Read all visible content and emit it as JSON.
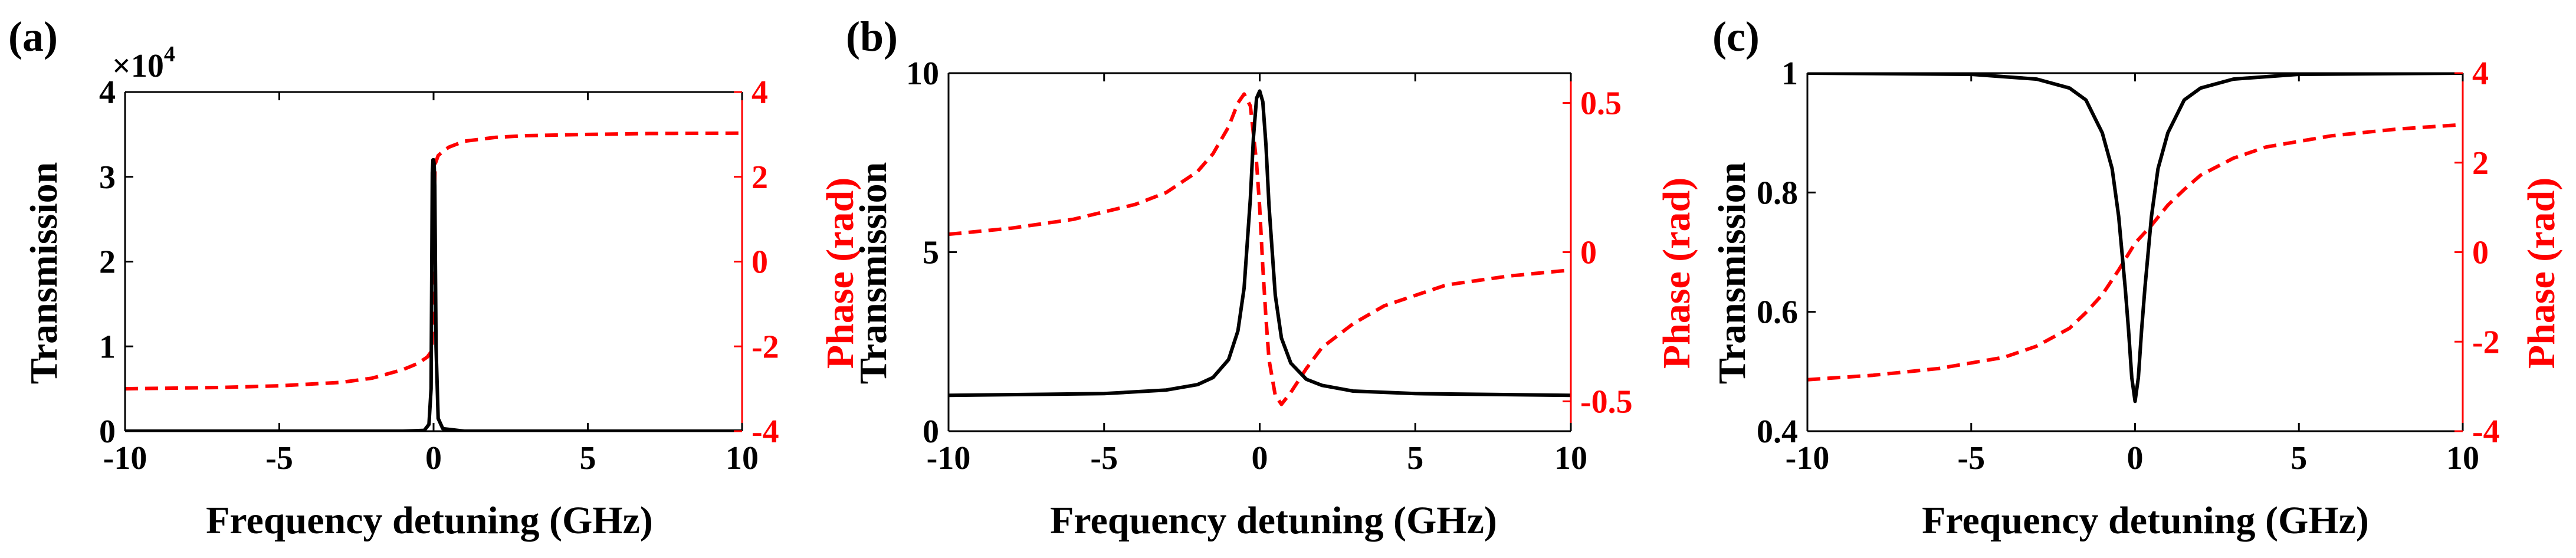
{
  "colors": {
    "transmission": "#000000",
    "phase": "#ff0000"
  },
  "chart_data": [
    {
      "type": "line",
      "panel_label": "(a)",
      "xlabel": "Frequency detuning (GHz)",
      "ylabel_left": "Transmission",
      "ylabel_right": "Phase (rad)",
      "exponent_label": "×10",
      "exponent_power": "4",
      "xlim": [
        -10,
        10
      ],
      "ylim_left": [
        0,
        4
      ],
      "ylim_right": [
        -4,
        4
      ],
      "xticks": [
        "-10",
        "-5",
        "0",
        "5",
        "10"
      ],
      "yticks_left": [
        "0",
        "1",
        "2",
        "3",
        "4"
      ],
      "yticks_right": [
        "-4",
        "-2",
        "0",
        "2",
        "4"
      ],
      "series": [
        {
          "name": "Transmission (×10^4)",
          "axis": "left",
          "style": "solid",
          "x": [
            -10,
            -1,
            -0.3,
            -0.15,
            -0.08,
            -0.04,
            -0.02,
            0,
            0.02,
            0.04,
            0.08,
            0.15,
            0.3,
            1,
            10
          ],
          "values": [
            0,
            0,
            0.01,
            0.08,
            0.5,
            3.05,
            3.2,
            3.2,
            3.15,
            2.9,
            1.0,
            0.15,
            0.03,
            0,
            0
          ]
        },
        {
          "name": "Phase",
          "axis": "right",
          "style": "dashed",
          "x": [
            -10,
            -7,
            -5,
            -3,
            -2,
            -1,
            -0.5,
            -0.2,
            -0.05,
            0,
            0.05,
            0.15,
            0.3,
            0.5,
            1,
            2,
            3,
            5,
            7,
            10
          ],
          "values": [
            -3.0,
            -2.97,
            -2.93,
            -2.85,
            -2.75,
            -2.55,
            -2.4,
            -2.25,
            -2.1,
            0.5,
            2.3,
            2.5,
            2.6,
            2.7,
            2.84,
            2.93,
            2.97,
            3.0,
            3.02,
            3.03
          ]
        }
      ]
    },
    {
      "type": "line",
      "panel_label": "(b)",
      "xlabel": "Frequency detuning (GHz)",
      "ylabel_left": "Transmission",
      "ylabel_right": "Phase (rad)",
      "xlim": [
        -10,
        10
      ],
      "ylim_left": [
        0,
        10
      ],
      "ylim_right": [
        -0.6,
        0.6
      ],
      "xticks": [
        "-10",
        "-5",
        "0",
        "5",
        "10"
      ],
      "yticks_left": [
        "0",
        "5",
        "10"
      ],
      "yticks_right": [
        "-0.5",
        "0",
        "0.5"
      ],
      "series": [
        {
          "name": "Transmission",
          "axis": "left",
          "style": "solid",
          "x": [
            -10,
            -5,
            -3,
            -2,
            -1.5,
            -1,
            -0.7,
            -0.5,
            -0.3,
            -0.2,
            -0.1,
            0,
            0.1,
            0.2,
            0.3,
            0.5,
            0.7,
            1,
            1.5,
            2,
            3,
            5,
            10
          ],
          "values": [
            1.0,
            1.05,
            1.15,
            1.3,
            1.5,
            2.0,
            2.8,
            4.0,
            6.5,
            8.2,
            9.3,
            9.5,
            9.2,
            8.0,
            6.3,
            3.8,
            2.6,
            1.9,
            1.45,
            1.28,
            1.12,
            1.05,
            1.0
          ]
        },
        {
          "name": "Phase",
          "axis": "right",
          "style": "dashed",
          "x": [
            -10,
            -8,
            -6,
            -4,
            -3,
            -2,
            -1.5,
            -1,
            -0.7,
            -0.5,
            -0.3,
            -0.1,
            0,
            0.1,
            0.2,
            0.3,
            0.5,
            0.7,
            1,
            1.5,
            2,
            3,
            4,
            6,
            8,
            10
          ],
          "values": [
            0.06,
            0.08,
            0.11,
            0.16,
            0.2,
            0.27,
            0.33,
            0.42,
            0.5,
            0.53,
            0.49,
            0.3,
            0.15,
            -0.05,
            -0.22,
            -0.36,
            -0.48,
            -0.51,
            -0.47,
            -0.39,
            -0.32,
            -0.24,
            -0.18,
            -0.11,
            -0.08,
            -0.06
          ]
        }
      ]
    },
    {
      "type": "line",
      "panel_label": "(c)",
      "xlabel": "Frequency detuning (GHz)",
      "ylabel_left": "Transmission",
      "ylabel_right": "Phase (rad)",
      "xlim": [
        -10,
        10
      ],
      "ylim_left": [
        0.4,
        1.0
      ],
      "ylim_right": [
        -4,
        4
      ],
      "xticks": [
        "-10",
        "-5",
        "0",
        "5",
        "10"
      ],
      "yticks_left": [
        "0.4",
        "0.6",
        "0.8",
        "1"
      ],
      "yticks_right": [
        "-4",
        "-2",
        "0",
        "2",
        "4"
      ],
      "series": [
        {
          "name": "Transmission",
          "axis": "left",
          "style": "solid",
          "x": [
            -10,
            -5,
            -3,
            -2,
            -1.5,
            -1,
            -0.7,
            -0.5,
            -0.3,
            -0.2,
            -0.1,
            0,
            0.1,
            0.2,
            0.3,
            0.5,
            0.7,
            1,
            1.5,
            2,
            3,
            5,
            10
          ],
          "values": [
            1.0,
            0.998,
            0.99,
            0.975,
            0.955,
            0.9,
            0.84,
            0.76,
            0.64,
            0.57,
            0.49,
            0.45,
            0.49,
            0.57,
            0.64,
            0.76,
            0.84,
            0.9,
            0.955,
            0.975,
            0.99,
            0.998,
            1.0
          ]
        },
        {
          "name": "Phase",
          "axis": "right",
          "style": "dashed",
          "x": [
            -10,
            -8,
            -6,
            -4,
            -3,
            -2,
            -1.5,
            -1,
            -0.5,
            0,
            0.5,
            1,
            1.5,
            2,
            3,
            4,
            6,
            8,
            10
          ],
          "values": [
            -2.85,
            -2.75,
            -2.6,
            -2.35,
            -2.1,
            -1.7,
            -1.35,
            -0.95,
            -0.4,
            0.2,
            0.6,
            1.05,
            1.4,
            1.72,
            2.1,
            2.35,
            2.6,
            2.75,
            2.85
          ]
        }
      ]
    }
  ]
}
